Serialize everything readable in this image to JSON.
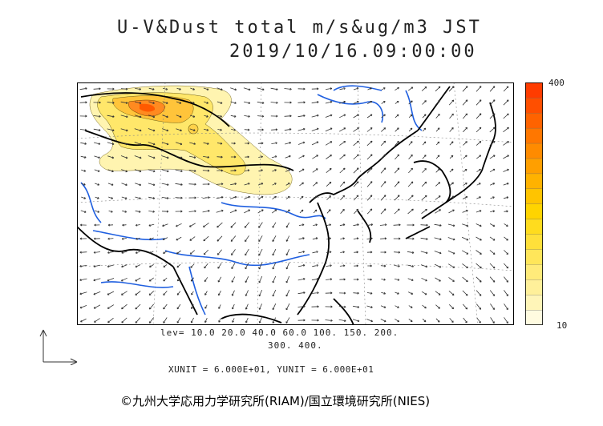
{
  "title": {
    "line1": "U-V&Dust total m/s&ug/m3 JST",
    "line2": "2019/10/16.09:00:00"
  },
  "colorbar": {
    "max_label": "400",
    "min_label": "10",
    "colors": [
      "#fffbe0",
      "#fff5b8",
      "#fff09a",
      "#ffeb7a",
      "#ffe65a",
      "#ffe03a",
      "#ffdc1e",
      "#ffd400",
      "#ffc400",
      "#ffb200",
      "#ff9f00",
      "#ff8b00",
      "#ff7700",
      "#ff6300",
      "#ff4f00",
      "#ff3c00"
    ]
  },
  "legend": {
    "levels_line1": "lev= 10.0 20.0 40.0 60.0 100. 150. 200.",
    "levels_line2": "300. 400.",
    "units": "XUNIT = 6.000E+01, YUNIT = 6.000E+01"
  },
  "map": {
    "coast_color": "#000000",
    "river_color": "#1f5fe0",
    "dust_color_low": "#fff2a8",
    "dust_color_high": "#ff5a00"
  },
  "credit": "©九州大学応用力学研究所(RIAM)/国立環境研究所(NIES)"
}
